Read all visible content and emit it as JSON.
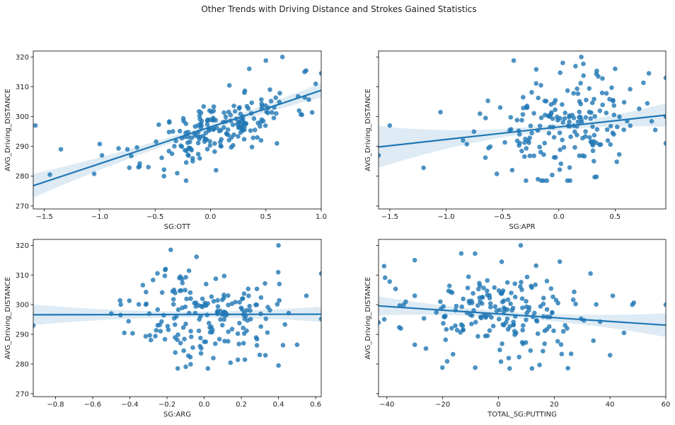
{
  "figure": {
    "title": "Other Trends with Driving Distance and Strokes Gained Statistics"
  },
  "colors": {
    "points": "#1f77b4",
    "line": "#1f77b4",
    "band": "#1f77b4",
    "axes": "#000000",
    "background": "#ffffff"
  },
  "chart_data": [
    {
      "type": "scatter",
      "xlabel": "SG:OTT",
      "ylabel": "AVG_Driving_DISTANCE",
      "xlim": [
        -1.6,
        1.0
      ],
      "ylim": [
        269,
        322
      ],
      "xticks": [
        -1.5,
        -1.0,
        -0.5,
        0.0,
        0.5,
        1.0
      ],
      "xtick_labels": [
        "−1.5",
        "−1.0",
        "−0.5",
        "0.0",
        "0.5",
        "1.0"
      ],
      "yticks": [
        270,
        280,
        290,
        300,
        310,
        320
      ],
      "show_y_labels": true,
      "grid": false,
      "regression": {
        "x": [
          -1.6,
          1.0
        ],
        "y": [
          276.8,
          308.8
        ],
        "ci_near_center": 1.0,
        "ci_at_edges": 4.0
      },
      "point_generator": {
        "n": 190,
        "x_center": 0.1,
        "x_sd": 0.33,
        "slope": 12.3,
        "intercept": 296.5,
        "noise_sd": 4.8,
        "seed": 11
      },
      "points": [
        [
          -1.58,
          297
        ],
        [
          -1.45,
          280.5
        ],
        [
          -1.35,
          289
        ],
        [
          -1.05,
          280.8
        ],
        [
          -1.0,
          290.8
        ],
        [
          -0.98,
          287
        ],
        [
          -0.75,
          289
        ],
        [
          -0.65,
          283
        ],
        [
          -0.42,
          280
        ],
        [
          -0.3,
          281
        ],
        [
          -0.22,
          278.5
        ],
        [
          0.35,
          316
        ],
        [
          0.5,
          318.8
        ],
        [
          0.65,
          320
        ],
        [
          0.85,
          315
        ],
        [
          0.95,
          311
        ],
        [
          1.0,
          314.5
        ],
        [
          0.8,
          302
        ],
        [
          0.6,
          291
        ],
        [
          0.05,
          282
        ]
      ]
    },
    {
      "type": "scatter",
      "xlabel": "SG:APR",
      "ylabel": "AVG_Driving_DISTANCE",
      "xlim": [
        -1.6,
        0.95
      ],
      "ylim": [
        269,
        322
      ],
      "xticks": [
        -1.5,
        -1.0,
        -0.5,
        0.0,
        0.5
      ],
      "xtick_labels": [
        "−1.5",
        "−1.0",
        "−0.5",
        "0.0",
        "0.5"
      ],
      "yticks": [
        270,
        280,
        290,
        300,
        310,
        320
      ],
      "show_y_labels": false,
      "grid": false,
      "regression": {
        "x": [
          -1.6,
          0.95
        ],
        "y": [
          289.8,
          300.5
        ],
        "ci_near_center": 1.0,
        "ci_at_edges": 7.0
      },
      "point_generator": {
        "n": 185,
        "x_center": 0.05,
        "x_sd": 0.32,
        "slope": 4.2,
        "intercept": 296.5,
        "noise_sd": 8.0,
        "seed": 23
      },
      "points": [
        [
          -1.6,
          287
        ],
        [
          -1.5,
          297
        ],
        [
          -1.2,
          282.8
        ],
        [
          -1.05,
          301.5
        ],
        [
          -0.85,
          292
        ],
        [
          -0.7,
          301
        ],
        [
          -0.65,
          299.5
        ],
        [
          -0.55,
          280.8
        ],
        [
          -0.4,
          318.8
        ],
        [
          -0.2,
          315.8
        ],
        [
          0.2,
          320
        ],
        [
          0.35,
          313.5
        ],
        [
          0.5,
          316
        ],
        [
          0.8,
          314.5
        ],
        [
          0.95,
          313
        ],
        [
          0.95,
          300
        ],
        [
          0.95,
          291
        ],
        [
          0.1,
          278.5
        ]
      ]
    },
    {
      "type": "scatter",
      "xlabel": "SG:ARG",
      "ylabel": "AVG_Driving_DISTANCE",
      "xlim": [
        -0.92,
        0.63
      ],
      "ylim": [
        269,
        322
      ],
      "xticks": [
        -0.8,
        -0.6,
        -0.4,
        -0.2,
        0.0,
        0.2,
        0.4,
        0.6
      ],
      "xtick_labels": [
        "−0.8",
        "−0.6",
        "−0.4",
        "−0.2",
        "0.0",
        "0.2",
        "0.4",
        "0.6"
      ],
      "yticks": [
        270,
        280,
        290,
        300,
        310,
        320
      ],
      "show_y_labels": true,
      "grid": false,
      "regression": {
        "x": [
          -0.92,
          0.63
        ],
        "y": [
          296.6,
          296.8
        ],
        "ci_near_center": 1.0,
        "ci_at_edges": 3.5
      },
      "point_generator": {
        "n": 185,
        "x_center": 0.0,
        "x_sd": 0.19,
        "slope": 0.1,
        "intercept": 296.7,
        "noise_sd": 8.0,
        "seed": 37
      },
      "points": [
        [
          -0.92,
          293
        ],
        [
          -0.5,
          297
        ],
        [
          -0.45,
          296.5
        ],
        [
          -0.43,
          290.5
        ],
        [
          -0.18,
          318.5
        ],
        [
          0.4,
          320
        ],
        [
          0.63,
          310.5
        ],
        [
          0.63,
          295.2
        ],
        [
          0.5,
          286.5
        ],
        [
          0.55,
          303
        ],
        [
          0.02,
          278.5
        ],
        [
          0.4,
          279.5
        ]
      ]
    },
    {
      "type": "scatter",
      "xlabel": "TOTAL_SG:PUTTING",
      "ylabel": "AVG_Driving_DISTANCE",
      "xlim": [
        -43,
        60
      ],
      "ylim": [
        269,
        322
      ],
      "xticks": [
        -40,
        -20,
        0,
        20,
        40,
        60
      ],
      "xtick_labels": [
        "−40",
        "−20",
        "0",
        "20",
        "40",
        "60"
      ],
      "yticks": [
        270,
        280,
        290,
        300,
        310,
        320
      ],
      "show_y_labels": false,
      "grid": false,
      "regression": {
        "x": [
          -43,
          60
        ],
        "y": [
          299.6,
          293.1
        ],
        "ci_near_center": 1.0,
        "ci_at_edges": 4.0
      },
      "point_generator": {
        "n": 190,
        "x_center": 2.0,
        "x_sd": 17.0,
        "slope": -0.063,
        "intercept": 296.5,
        "noise_sd": 8.0,
        "seed": 53
      },
      "points": [
        [
          -43,
          294
        ],
        [
          -41,
          313
        ],
        [
          -39,
          307.8
        ],
        [
          -35,
          292
        ],
        [
          -34,
          300
        ],
        [
          -30,
          315
        ],
        [
          -30,
          303
        ],
        [
          -30,
          286.5
        ],
        [
          -26,
          285.2
        ],
        [
          8,
          320
        ],
        [
          12,
          278.5
        ],
        [
          22,
          314.5
        ],
        [
          33,
          310.5
        ],
        [
          40,
          283
        ],
        [
          41,
          303
        ],
        [
          45,
          290.5
        ],
        [
          48,
          300
        ],
        [
          60,
          300
        ]
      ]
    }
  ]
}
